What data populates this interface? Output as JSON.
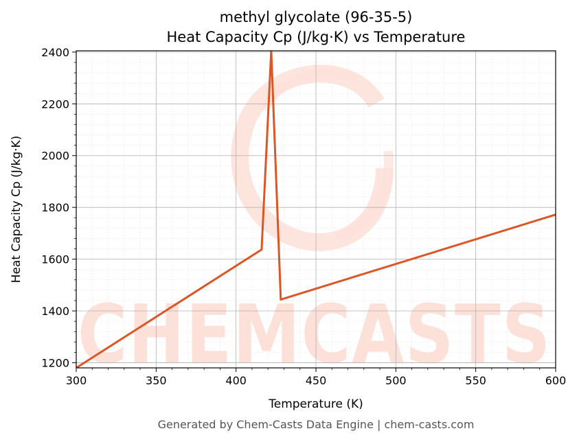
{
  "chart_data": {
    "type": "line",
    "title": "methyl glycolate (96-35-5)",
    "subtitle": "Heat Capacity Cp (J/kg·K) vs Temperature",
    "xlabel": "Temperature (K)",
    "ylabel": "Heat Capacity Cp (J/kg·K)",
    "xlim": [
      300,
      600
    ],
    "ylim": [
      1180,
      2405
    ],
    "xticks": [
      300,
      350,
      400,
      450,
      500,
      550,
      600
    ],
    "yticks": [
      1200,
      1400,
      1600,
      1800,
      2000,
      2200,
      2400
    ],
    "grid": true,
    "legend": "none",
    "line_color": "#dd5522",
    "series": [
      {
        "x": [
          300,
          416,
          422,
          428,
          600
        ],
        "y": [
          1180,
          1637,
          2405,
          1444,
          1772
        ]
      }
    ]
  },
  "watermark": {
    "text": "CHEMCASTS",
    "color": "#fde0d8"
  },
  "footer": "Generated by Chem-Casts Data Engine | chem-casts.com"
}
